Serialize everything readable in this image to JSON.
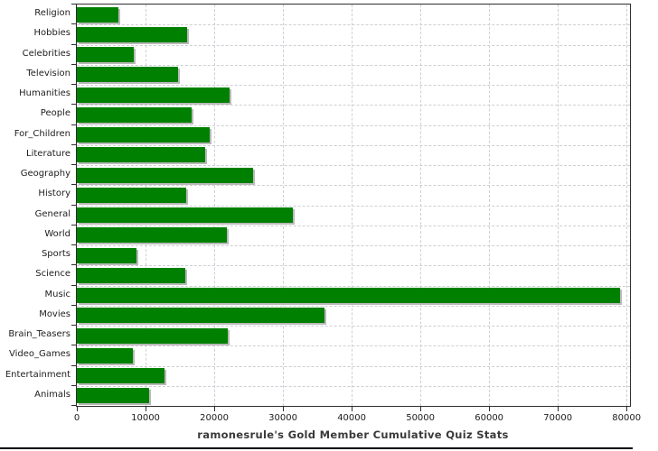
{
  "chart_data": {
    "type": "bar",
    "orientation": "horizontal",
    "title": "ramonesrule's Gold Member Cumulative Quiz Stats",
    "categories": [
      "Religion",
      "Hobbies",
      "Celebrities",
      "Television",
      "Humanities",
      "People",
      "For_Children",
      "Literature",
      "Geography",
      "History",
      "General",
      "World",
      "Sports",
      "Science",
      "Music",
      "Movies",
      "Brain_Teasers",
      "Video_Games",
      "Entertainment",
      "Animals"
    ],
    "values": [
      6000,
      16100,
      8300,
      14700,
      22200,
      16700,
      19300,
      18700,
      25600,
      15900,
      31400,
      21800,
      8700,
      15800,
      79100,
      36100,
      22000,
      8100,
      12700,
      10500
    ],
    "x_ticks": [
      0,
      10000,
      20000,
      30000,
      40000,
      50000,
      60000,
      70000,
      80000
    ],
    "x_tick_labels": [
      "0",
      "10000",
      "20000",
      "30000",
      "40000",
      "50000",
      "60000",
      "70000",
      "80000"
    ],
    "xlim": [
      0,
      80500
    ],
    "grid": true,
    "legend": false,
    "bar_color": "#008000",
    "bar_shadow_color": "#b9b9b9",
    "gridline_color": "#cccfd4",
    "axis_color": "#2e2e2e",
    "label_color": "#1d1d1d",
    "title_color": "#3a3a3a",
    "background_color": "#ffffff"
  }
}
